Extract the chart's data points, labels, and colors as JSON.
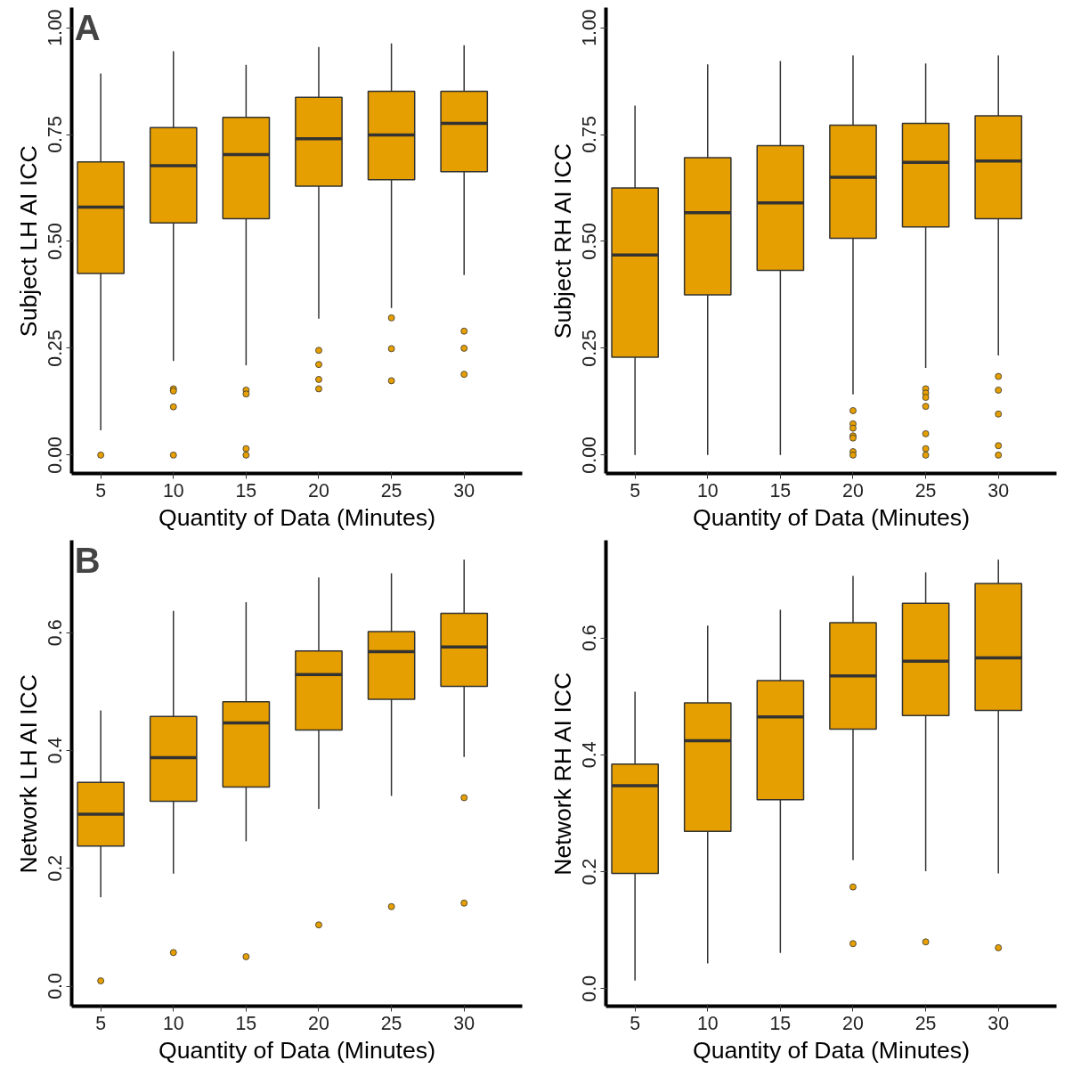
{
  "chart_data": [
    {
      "type": "box",
      "annotations": [
        "A"
      ],
      "xlabel": "Quantity of Data (Minutes)",
      "ylabel": "Subject LH AI ICC",
      "categories": [
        "5",
        "10",
        "15",
        "20",
        "25",
        "30"
      ],
      "color": "#e69f00",
      "ylim": [
        -0.043,
        1.047
      ],
      "yticks": [
        {
          "value": 0,
          "label": "0.00"
        },
        {
          "value": 0.25,
          "label": "0.25"
        },
        {
          "value": 0.5,
          "label": "0.50"
        },
        {
          "value": 0.75,
          "label": "0.75"
        },
        {
          "value": 1,
          "label": "1.00"
        }
      ],
      "boxes": [
        {
          "low": 0.058,
          "q1": 0.425,
          "median": 0.58,
          "q3": 0.686,
          "high": 0.893,
          "outliers": [
            0
          ]
        },
        {
          "low": 0.22,
          "q1": 0.543,
          "median": 0.677,
          "q3": 0.766,
          "high": 0.945,
          "outliers": [
            0.155,
            0.15,
            0.113,
            0
          ]
        },
        {
          "low": 0.21,
          "q1": 0.553,
          "median": 0.703,
          "q3": 0.79,
          "high": 0.913,
          "outliers": [
            0.152,
            0.143,
            0.015,
            0
          ]
        },
        {
          "low": 0.319,
          "q1": 0.629,
          "median": 0.74,
          "q3": 0.837,
          "high": 0.955,
          "outliers": [
            0.245,
            0.212,
            0.177,
            0.155
          ]
        },
        {
          "low": 0.344,
          "q1": 0.644,
          "median": 0.749,
          "q3": 0.851,
          "high": 0.963,
          "outliers": [
            0.321,
            0.249,
            0.174
          ]
        },
        {
          "low": 0.421,
          "q1": 0.663,
          "median": 0.776,
          "q3": 0.851,
          "high": 0.959,
          "outliers": [
            0.29,
            0.25,
            0.189
          ]
        }
      ]
    },
    {
      "type": "box",
      "xlabel": "Quantity of Data (Minutes)",
      "ylabel": "Subject RH AI ICC",
      "categories": [
        "5",
        "10",
        "15",
        "20",
        "25",
        "30"
      ],
      "color": "#e69f00",
      "ylim": [
        -0.043,
        1.047
      ],
      "yticks": [
        {
          "value": 0,
          "label": "0.00"
        },
        {
          "value": 0.25,
          "label": "0.25"
        },
        {
          "value": 0.5,
          "label": "0.50"
        },
        {
          "value": 0.75,
          "label": "0.75"
        },
        {
          "value": 1,
          "label": "1.00"
        }
      ],
      "boxes": [
        {
          "low": 0,
          "q1": 0.229,
          "median": 0.468,
          "q3": 0.625,
          "high": 0.818
        },
        {
          "low": 0,
          "q1": 0.375,
          "median": 0.567,
          "q3": 0.696,
          "high": 0.914
        },
        {
          "low": 0,
          "q1": 0.432,
          "median": 0.59,
          "q3": 0.724,
          "high": 0.922
        },
        {
          "low": 0.142,
          "q1": 0.507,
          "median": 0.65,
          "q3": 0.772,
          "high": 0.935,
          "outliers": [
            0.104,
            0.073,
            0.063,
            0.045,
            0.04,
            0.008,
            0
          ]
        },
        {
          "low": 0.204,
          "q1": 0.534,
          "median": 0.685,
          "q3": 0.776,
          "high": 0.916,
          "outliers": [
            0.155,
            0.145,
            0.135,
            0.114,
            0.05,
            0.015,
            0
          ]
        },
        {
          "low": 0.233,
          "q1": 0.553,
          "median": 0.688,
          "q3": 0.794,
          "high": 0.935,
          "outliers": [
            0.184,
            0.152,
            0.096,
            0.022,
            0
          ]
        }
      ]
    },
    {
      "type": "box",
      "annotations": [
        "B"
      ],
      "xlabel": "Quantity of Data (Minutes)",
      "ylabel": "Network LH AI ICC",
      "categories": [
        "5",
        "10",
        "15",
        "20",
        "25",
        "30"
      ],
      "color": "#e69f00",
      "ylim": [
        -0.034,
        0.757
      ],
      "yticks": [
        {
          "value": 0,
          "label": "0.0"
        },
        {
          "value": 0.2,
          "label": "0.2"
        },
        {
          "value": 0.4,
          "label": "0.4"
        },
        {
          "value": 0.6,
          "label": "0.6"
        }
      ],
      "boxes": [
        {
          "low": 0.151,
          "q1": 0.238,
          "median": 0.292,
          "q3": 0.346,
          "high": 0.468,
          "outliers": [
            0.009
          ]
        },
        {
          "low": 0.191,
          "q1": 0.314,
          "median": 0.388,
          "q3": 0.458,
          "high": 0.637,
          "outliers": [
            0.057
          ]
        },
        {
          "low": 0.246,
          "q1": 0.338,
          "median": 0.447,
          "q3": 0.483,
          "high": 0.652,
          "outliers": [
            0.05
          ]
        },
        {
          "low": 0.301,
          "q1": 0.435,
          "median": 0.529,
          "q3": 0.569,
          "high": 0.694,
          "outliers": [
            0.104
          ]
        },
        {
          "low": 0.323,
          "q1": 0.487,
          "median": 0.568,
          "q3": 0.602,
          "high": 0.701,
          "outliers": [
            0.135
          ]
        },
        {
          "low": 0.389,
          "q1": 0.509,
          "median": 0.576,
          "q3": 0.633,
          "high": 0.724,
          "outliers": [
            0.32,
            0.141
          ]
        }
      ]
    },
    {
      "type": "box",
      "xlabel": "Quantity of Data (Minutes)",
      "ylabel": "Network RH AI ICC",
      "categories": [
        "5",
        "10",
        "15",
        "20",
        "25",
        "30"
      ],
      "color": "#e69f00",
      "ylim": [
        -0.03,
        0.767
      ],
      "yticks": [
        {
          "value": 0,
          "label": "0.0"
        },
        {
          "value": 0.2,
          "label": "0.2"
        },
        {
          "value": 0.4,
          "label": "0.4"
        },
        {
          "value": 0.6,
          "label": "0.6"
        }
      ],
      "boxes": [
        {
          "low": 0.014,
          "q1": 0.197,
          "median": 0.347,
          "q3": 0.384,
          "high": 0.508
        },
        {
          "low": 0.043,
          "q1": 0.269,
          "median": 0.424,
          "q3": 0.489,
          "high": 0.621
        },
        {
          "low": 0.061,
          "q1": 0.323,
          "median": 0.465,
          "q3": 0.527,
          "high": 0.648
        },
        {
          "low": 0.22,
          "q1": 0.444,
          "median": 0.535,
          "q3": 0.626,
          "high": 0.706,
          "outliers": [
            0.174,
            0.077
          ]
        },
        {
          "low": 0.201,
          "q1": 0.467,
          "median": 0.56,
          "q3": 0.659,
          "high": 0.712,
          "outliers": [
            0.08
          ]
        },
        {
          "low": 0.197,
          "q1": 0.476,
          "median": 0.566,
          "q3": 0.693,
          "high": 0.734,
          "outliers": [
            0.07
          ]
        }
      ]
    }
  ]
}
